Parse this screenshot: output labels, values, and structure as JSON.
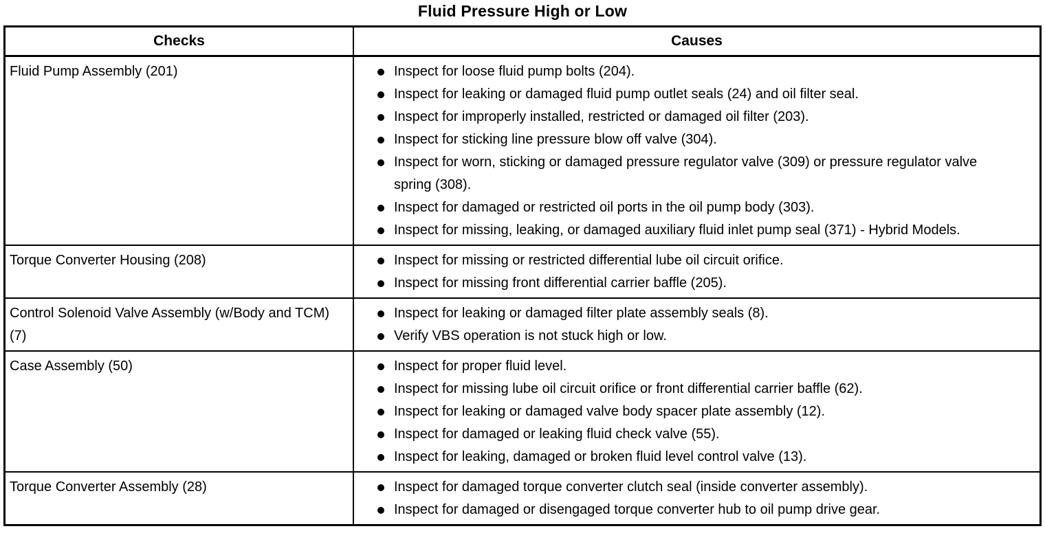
{
  "title": "Fluid Pressure High or Low",
  "table": {
    "headers": [
      "Checks",
      "Causes"
    ],
    "rows": [
      {
        "check": "Fluid Pump Assembly (201)",
        "causes": [
          "Inspect for loose fluid pump bolts (204).",
          "Inspect for leaking or damaged fluid pump outlet seals (24) and oil filter seal.",
          "Inspect for improperly installed, restricted or damaged oil filter (203).",
          "Inspect for sticking line pressure blow off valve (304).",
          "Inspect for worn, sticking or damaged pressure regulator valve (309) or pressure regulator valve spring (308).",
          "Inspect for damaged or restricted oil ports in the oil pump body (303).",
          "Inspect for missing, leaking, or damaged auxiliary fluid inlet pump seal (371) - Hybrid Models."
        ]
      },
      {
        "check": "Torque Converter Housing (208)",
        "causes": [
          "Inspect for missing or restricted differential lube oil circuit orifice.",
          "Inspect for missing front differential carrier baffle (205)."
        ]
      },
      {
        "check": "Control Solenoid Valve Assembly (w/Body and TCM) (7)",
        "causes": [
          "Inspect for leaking or damaged filter plate assembly seals (8).",
          "Verify VBS operation is not stuck high or low."
        ]
      },
      {
        "check": "Case Assembly (50)",
        "causes": [
          "Inspect for proper fluid level.",
          "Inspect for missing lube oil circuit orifice or front differential carrier baffle (62).",
          "Inspect for leaking or damaged valve body spacer plate assembly (12).",
          "Inspect for damaged or leaking fluid check valve (55).",
          "Inspect for leaking, damaged or broken fluid level control valve (13)."
        ]
      },
      {
        "check": "Torque Converter Assembly (28)",
        "causes": [
          "Inspect for damaged torque converter clutch seal (inside converter assembly).",
          "Inspect for damaged or disengaged torque converter hub to oil pump drive gear."
        ]
      }
    ]
  },
  "colors": {
    "text": "#000000",
    "background": "#ffffff",
    "border": "#000000"
  }
}
